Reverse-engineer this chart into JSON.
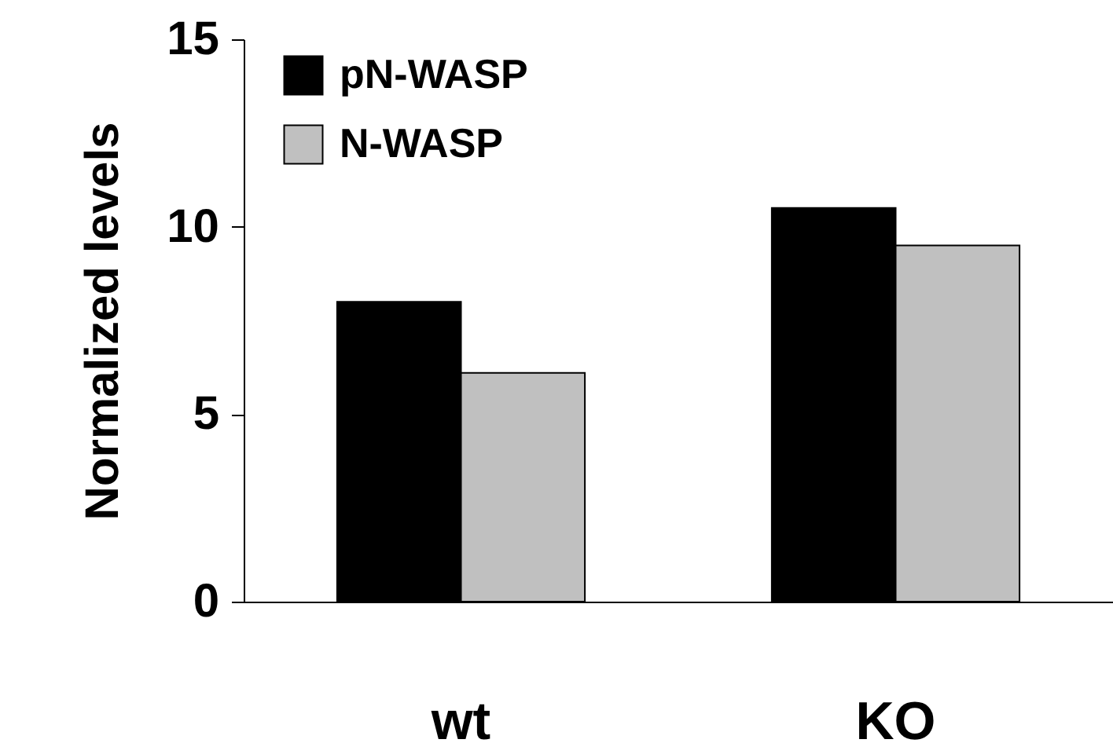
{
  "chart_data": {
    "type": "bar",
    "ylabel": "Normalized levels",
    "categories": [
      "wt",
      "KO"
    ],
    "series": [
      {
        "name": "pN-WASP",
        "color": "#000000",
        "values": [
          8.0,
          10.5
        ]
      },
      {
        "name": "N-WASP",
        "color": "#c0c0c0",
        "values": [
          6.1,
          9.5
        ]
      }
    ],
    "ylim": [
      0,
      15
    ],
    "yticks": [
      0,
      5,
      10,
      15
    ],
    "grid": false,
    "legend": "top left"
  }
}
